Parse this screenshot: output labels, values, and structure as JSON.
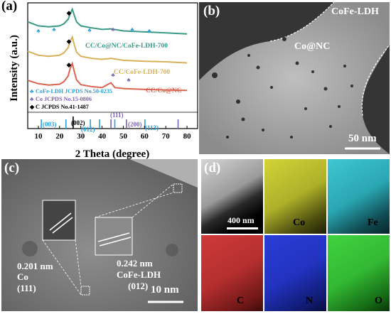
{
  "panels": {
    "a": {
      "tag": "(a)",
      "xlabel": "2 Theta (degree)",
      "ylabel": "Intensity (a.u.)",
      "xticks": [
        "10",
        "20",
        "30",
        "40",
        "50",
        "60",
        "70",
        "80"
      ],
      "curve_labels": [
        "CC/Co@NC/CoFe-LDH-700",
        "CC/CoFe-LDH-700",
        "CC/Co@NC"
      ],
      "legend": [
        {
          "marker": "♣",
          "text": "CoFe-LDH JCPDS No.50-0235"
        },
        {
          "marker": "♣",
          "text": "Co  JCPDS No.15-0806"
        },
        {
          "marker": "◆",
          "text": "C  JCPDS No.41-1487"
        }
      ],
      "reflections": [
        "(003)",
        "(002)",
        "(012)",
        "(111)",
        "(200)",
        "(113)"
      ]
    },
    "b": {
      "tag": "(b)",
      "labels": [
        "CoFe-LDH",
        "Co@NC"
      ],
      "scale": "50 nm"
    },
    "c": {
      "tag": "(c)",
      "left_label": [
        "0.201 nm",
        "Co",
        "(111)"
      ],
      "right_label": [
        "0.242 nm",
        "CoFe-LDH",
        "(012)"
      ],
      "scale": "10 nm"
    },
    "d": {
      "tag": "(d)",
      "scale": "400 nm",
      "maps": [
        "Co",
        "Fe",
        "C",
        "N",
        "O"
      ]
    }
  },
  "chart_data": {
    "type": "line",
    "title": "",
    "xlabel": "2 Theta (degree)",
    "ylabel": "Intensity (a.u.)",
    "xlim": [
      5,
      85
    ],
    "grid": false,
    "series": [
      {
        "name": "CC/Co@NC/CoFe-LDH-700",
        "color": "#3a9a86",
        "x": [
          5,
          10,
          15,
          20,
          22,
          24,
          25,
          26,
          27,
          28,
          30,
          35,
          40,
          44.2,
          50,
          60,
          70,
          80
        ],
        "y": [
          0.3,
          0.22,
          0.2,
          0.22,
          0.26,
          0.35,
          0.46,
          0.55,
          0.42,
          0.3,
          0.22,
          0.18,
          0.15,
          0.16,
          0.12,
          0.1,
          0.08,
          0.06
        ]
      },
      {
        "name": "CC/CoFe-LDH-700",
        "color": "#d9b15a",
        "x": [
          5,
          10,
          15,
          20,
          22,
          24,
          25,
          26,
          27,
          28,
          30,
          35,
          40,
          44.2,
          50,
          60,
          70,
          80
        ],
        "y": [
          0.28,
          0.2,
          0.18,
          0.2,
          0.25,
          0.35,
          0.48,
          0.56,
          0.4,
          0.26,
          0.18,
          0.14,
          0.12,
          0.14,
          0.1,
          0.08,
          0.07,
          0.05
        ]
      },
      {
        "name": "CC/Co@NC",
        "color": "#d8654f",
        "x": [
          5,
          10,
          15,
          20,
          22,
          24,
          25,
          26,
          27,
          28,
          30,
          35,
          40,
          44.2,
          46,
          50,
          60,
          70,
          80
        ],
        "y": [
          0.25,
          0.18,
          0.15,
          0.17,
          0.22,
          0.34,
          0.5,
          0.6,
          0.42,
          0.26,
          0.16,
          0.12,
          0.1,
          0.2,
          0.1,
          0.08,
          0.06,
          0.05,
          0.04
        ]
      }
    ],
    "reference_lines": [
      {
        "x": 11.4,
        "color": "#2c9fd8"
      },
      {
        "x": 23.0,
        "color": "#2c9fd8"
      },
      {
        "x": 26.4,
        "color": "#000000"
      },
      {
        "x": 34.5,
        "color": "#2c9fd8"
      },
      {
        "x": 38.8,
        "color": "#2c9fd8"
      },
      {
        "x": 44.2,
        "color": "#7b63b0"
      },
      {
        "x": 46.0,
        "color": "#2c9fd8"
      },
      {
        "x": 51.5,
        "color": "#7b63b0"
      },
      {
        "x": 60.2,
        "color": "#2c9fd8"
      },
      {
        "x": 75.8,
        "color": "#7b63b0"
      }
    ]
  }
}
